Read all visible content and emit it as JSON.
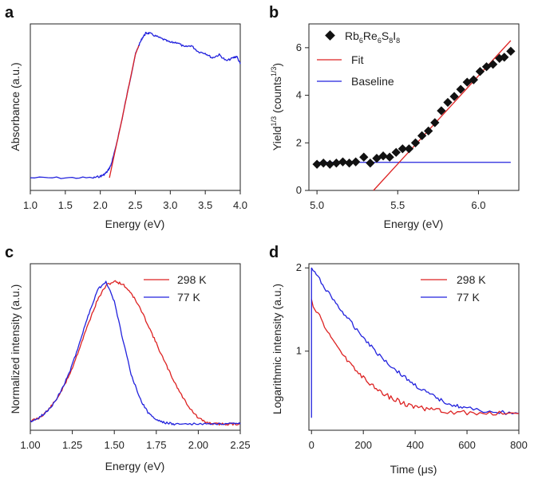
{
  "chart_data": [
    {
      "panel": "a",
      "type": "line",
      "xlabel": "Energy (eV)",
      "ylabel": "Absorbance (a.u.)",
      "xlim": [
        1.0,
        4.0
      ],
      "xticks": [
        "1.0",
        "1.5",
        "2.0",
        "2.5",
        "3.0",
        "3.5",
        "4.0"
      ],
      "yticks_shown": false,
      "series": [
        {
          "color": "#2222dd",
          "x": [
            1.0,
            1.5,
            1.9,
            2.0,
            2.05,
            2.1,
            2.15,
            2.2,
            2.3,
            2.4,
            2.5,
            2.55,
            2.6,
            2.65,
            2.7,
            2.8,
            2.9,
            3.0,
            3.1,
            3.2,
            3.3,
            3.4,
            3.5,
            3.6,
            3.7,
            3.8,
            3.9,
            3.95,
            4.0
          ],
          "y": [
            0.02,
            0.02,
            0.02,
            0.03,
            0.04,
            0.06,
            0.1,
            0.18,
            0.38,
            0.6,
            0.82,
            0.88,
            0.93,
            0.96,
            0.96,
            0.94,
            0.92,
            0.9,
            0.9,
            0.87,
            0.88,
            0.84,
            0.83,
            0.8,
            0.82,
            0.78,
            0.8,
            0.81,
            0.76
          ]
        },
        {
          "color": "#dd2222",
          "x": [
            2.13,
            2.2,
            2.3,
            2.4,
            2.5,
            2.55
          ],
          "y": [
            0.02,
            0.17,
            0.38,
            0.6,
            0.82,
            0.88
          ]
        }
      ]
    },
    {
      "panel": "b",
      "type": "scatter",
      "xlabel": "Energy (eV)",
      "ylabel": "Yield^1/3 (counts^1/3)",
      "xlim": [
        4.95,
        6.25
      ],
      "ylim": [
        0,
        7
      ],
      "xticks": [
        "5.0",
        "5.5",
        "6.0"
      ],
      "yticks": [
        "0",
        "2",
        "4",
        "6"
      ],
      "legend": [
        "Rb6Re6S8I8",
        "Fit",
        "Baseline"
      ],
      "scatter": {
        "x": [
          5.0,
          5.04,
          5.08,
          5.12,
          5.16,
          5.2,
          5.24,
          5.29,
          5.33,
          5.37,
          5.41,
          5.45,
          5.49,
          5.53,
          5.57,
          5.61,
          5.65,
          5.69,
          5.73,
          5.77,
          5.81,
          5.85,
          5.89,
          5.93,
          5.97,
          6.01,
          6.05,
          6.09,
          6.13,
          6.16,
          6.2
        ],
        "y": [
          1.1,
          1.15,
          1.1,
          1.15,
          1.2,
          1.15,
          1.2,
          1.4,
          1.15,
          1.35,
          1.45,
          1.4,
          1.6,
          1.75,
          1.75,
          2.0,
          2.3,
          2.5,
          2.85,
          3.35,
          3.7,
          3.95,
          4.25,
          4.55,
          4.65,
          5.0,
          5.2,
          5.3,
          5.55,
          5.6,
          5.85
        ]
      },
      "fit": {
        "color": "#dd2222",
        "x": [
          5.35,
          6.2
        ],
        "y": [
          0,
          6.3
        ]
      },
      "baseline": {
        "color": "#2222dd",
        "x": [
          5.0,
          6.2
        ],
        "y": [
          1.18,
          1.18
        ]
      }
    },
    {
      "panel": "c",
      "type": "line",
      "xlabel": "Energy (eV)",
      "ylabel": "Normalized intensity (a.u.)",
      "xlim": [
        1.0,
        2.25
      ],
      "xticks": [
        "1.00",
        "1.25",
        "1.50",
        "1.75",
        "2.00",
        "2.25"
      ],
      "yticks_shown": false,
      "legend": [
        "298 K",
        "77 K"
      ],
      "series": [
        {
          "name": "298 K",
          "color": "#dd2222",
          "x": [
            1.0,
            1.05,
            1.1,
            1.15,
            1.2,
            1.25,
            1.3,
            1.35,
            1.4,
            1.45,
            1.5,
            1.55,
            1.6,
            1.65,
            1.7,
            1.75,
            1.8,
            1.85,
            1.9,
            1.95,
            2.0,
            2.05,
            2.1,
            2.15,
            2.2,
            2.25
          ],
          "y": [
            0.03,
            0.05,
            0.1,
            0.17,
            0.27,
            0.4,
            0.56,
            0.72,
            0.87,
            0.97,
            1.0,
            0.98,
            0.92,
            0.82,
            0.7,
            0.57,
            0.44,
            0.32,
            0.21,
            0.12,
            0.05,
            0.02,
            0.01,
            0.01,
            0.01,
            0.01
          ]
        },
        {
          "name": "77 K",
          "color": "#2222dd",
          "x": [
            1.0,
            1.05,
            1.1,
            1.15,
            1.2,
            1.25,
            1.3,
            1.35,
            1.4,
            1.45,
            1.5,
            1.55,
            1.6,
            1.65,
            1.7,
            1.75,
            1.8,
            1.85,
            1.9,
            2.0,
            2.1,
            2.2,
            2.25
          ],
          "y": [
            0.03,
            0.05,
            0.1,
            0.17,
            0.28,
            0.42,
            0.6,
            0.78,
            0.94,
            1.0,
            0.86,
            0.6,
            0.36,
            0.19,
            0.09,
            0.04,
            0.02,
            0.01,
            0.01,
            0.01,
            0.01,
            0.01,
            0.01
          ]
        }
      ]
    },
    {
      "panel": "d",
      "type": "line",
      "xlabel": "Time (μs)",
      "ylabel": "Logarithmic intensity (a.u.)",
      "xlim": [
        -10,
        800
      ],
      "ylim": [
        0.05,
        2.05
      ],
      "xticks": [
        "0",
        "200",
        "400",
        "600",
        "800"
      ],
      "yticks": [
        "1",
        "2"
      ],
      "legend": [
        "298 K",
        "77 K"
      ],
      "series": [
        {
          "name": "298 K",
          "color": "#dd2222",
          "x": [
            0,
            50,
            100,
            150,
            200,
            250,
            300,
            350,
            400,
            450,
            500,
            600,
            700,
            800
          ],
          "y": [
            1.6,
            1.3,
            1.05,
            0.85,
            0.68,
            0.55,
            0.45,
            0.38,
            0.33,
            0.3,
            0.28,
            0.26,
            0.25,
            0.25
          ]
        },
        {
          "name": "77 K",
          "color": "#2222dd",
          "x": [
            0,
            50,
            100,
            150,
            200,
            250,
            300,
            350,
            400,
            450,
            500,
            550,
            600,
            700,
            800
          ],
          "y": [
            2.0,
            1.77,
            1.55,
            1.35,
            1.17,
            0.99,
            0.84,
            0.71,
            0.59,
            0.49,
            0.41,
            0.35,
            0.31,
            0.27,
            0.25
          ]
        }
      ]
    }
  ]
}
